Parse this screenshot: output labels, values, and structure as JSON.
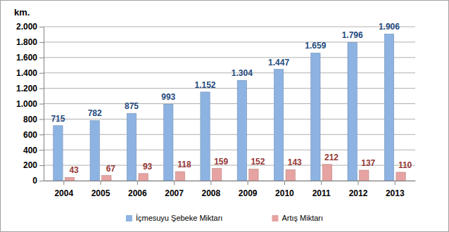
{
  "chart_data": {
    "type": "bar",
    "y_label": "km.",
    "categories": [
      "2004",
      "2005",
      "2006",
      "2007",
      "2008",
      "2009",
      "2010",
      "2011",
      "2012",
      "2013"
    ],
    "series": [
      {
        "name": "İçmesuyu Şebeke Miktarı",
        "color": "#8db3e2",
        "values": [
          715,
          782,
          875,
          993,
          1152,
          1304,
          1447,
          1659,
          1796,
          1906
        ],
        "value_labels": [
          "715",
          "782",
          "875",
          "993",
          "1.152",
          "1.304",
          "1.447",
          "1.659",
          "1.796",
          "1.906"
        ]
      },
      {
        "name": "Artış Miktarı",
        "color": "#e6a3a1",
        "values": [
          43,
          67,
          93,
          118,
          159,
          152,
          143,
          212,
          137,
          110
        ]
      }
    ],
    "ylim": [
      0,
      2000
    ],
    "yticks": [
      0,
      200,
      400,
      600,
      800,
      {
        "value": 1000,
        "label": "1.000"
      },
      {
        "value": 1200,
        "label": "1.200"
      },
      {
        "value": 1400,
        "label": "1.400"
      },
      {
        "value": 1600,
        "label": "1.600"
      },
      {
        "value": 1800,
        "label": "1.800"
      },
      {
        "value": 2000,
        "label": "2.000"
      }
    ],
    "grid": true,
    "data_labels": true,
    "legend": "bottom"
  }
}
